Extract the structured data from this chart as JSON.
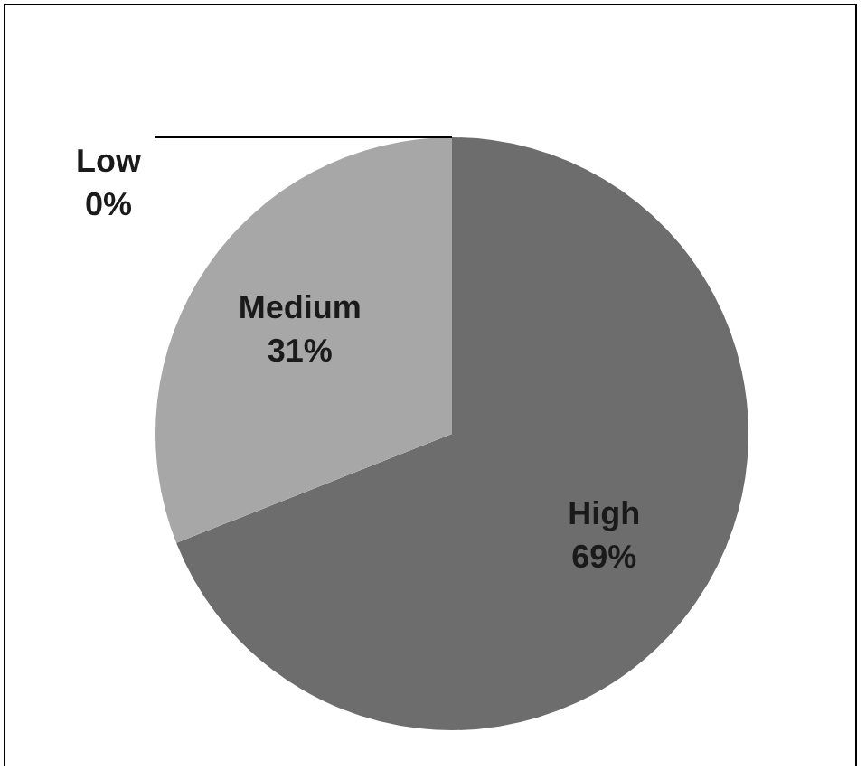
{
  "chart_data": {
    "type": "pie",
    "categories": [
      "High",
      "Medium",
      "Low"
    ],
    "values": [
      69,
      31,
      0
    ],
    "colors": [
      "#6d6d6d",
      "#a7a7a7",
      "#d0d0d0"
    ],
    "value_labels": [
      "69%",
      "31%",
      "0%"
    ],
    "legend": false
  }
}
